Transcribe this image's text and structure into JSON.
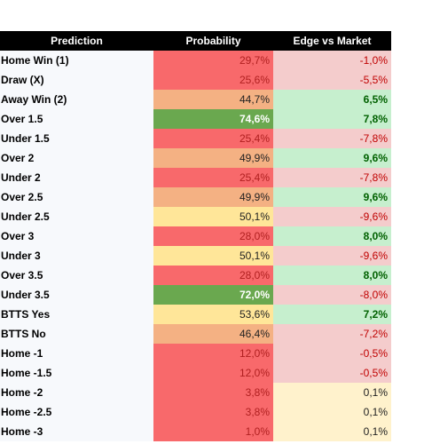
{
  "table": {
    "header": [
      "Prediction",
      "Probability",
      "Edge vs Market"
    ],
    "rows": [
      [
        "Home Win (1)",
        "29,7%",
        "-1,0%"
      ],
      [
        "Draw (X)",
        "25,6%",
        "-5,5%"
      ],
      [
        "Away Win (2)",
        "44,7%",
        "6,5%"
      ],
      [
        "Over 1.5",
        "74,6%",
        "7,8%"
      ],
      [
        "Under 1.5",
        "25,4%",
        "-7,8%"
      ],
      [
        "Over 2",
        "49,9%",
        "9,6%"
      ],
      [
        "Under 2",
        "25,4%",
        "-7,8%"
      ],
      [
        "Over 2.5",
        "49,9%",
        "9,6%"
      ],
      [
        "Under 2.5",
        "50,1%",
        "-9,6%"
      ],
      [
        "Over 3",
        "28,0%",
        "8,0%"
      ],
      [
        "Under 3",
        "50,1%",
        "-9,6%"
      ],
      [
        "Over 3.5",
        "28,0%",
        "8,0%"
      ],
      [
        "Under 3.5",
        "72,0%",
        "-8,0%"
      ],
      [
        "BTTS Yes",
        "53,6%",
        "7,2%"
      ],
      [
        "BTTS No",
        "46,4%",
        "-7,2%"
      ],
      [
        "Home -1",
        "12,0%",
        "-0,5%"
      ],
      [
        "Home -1.5",
        "12,0%",
        "-0,5%"
      ],
      [
        "Home -2",
        "3,8%",
        "0,1%"
      ],
      [
        "Home -2.5",
        "3,8%",
        "0,1%"
      ],
      [
        "Home -3",
        "1,0%",
        "0,1%"
      ]
    ]
  }
}
